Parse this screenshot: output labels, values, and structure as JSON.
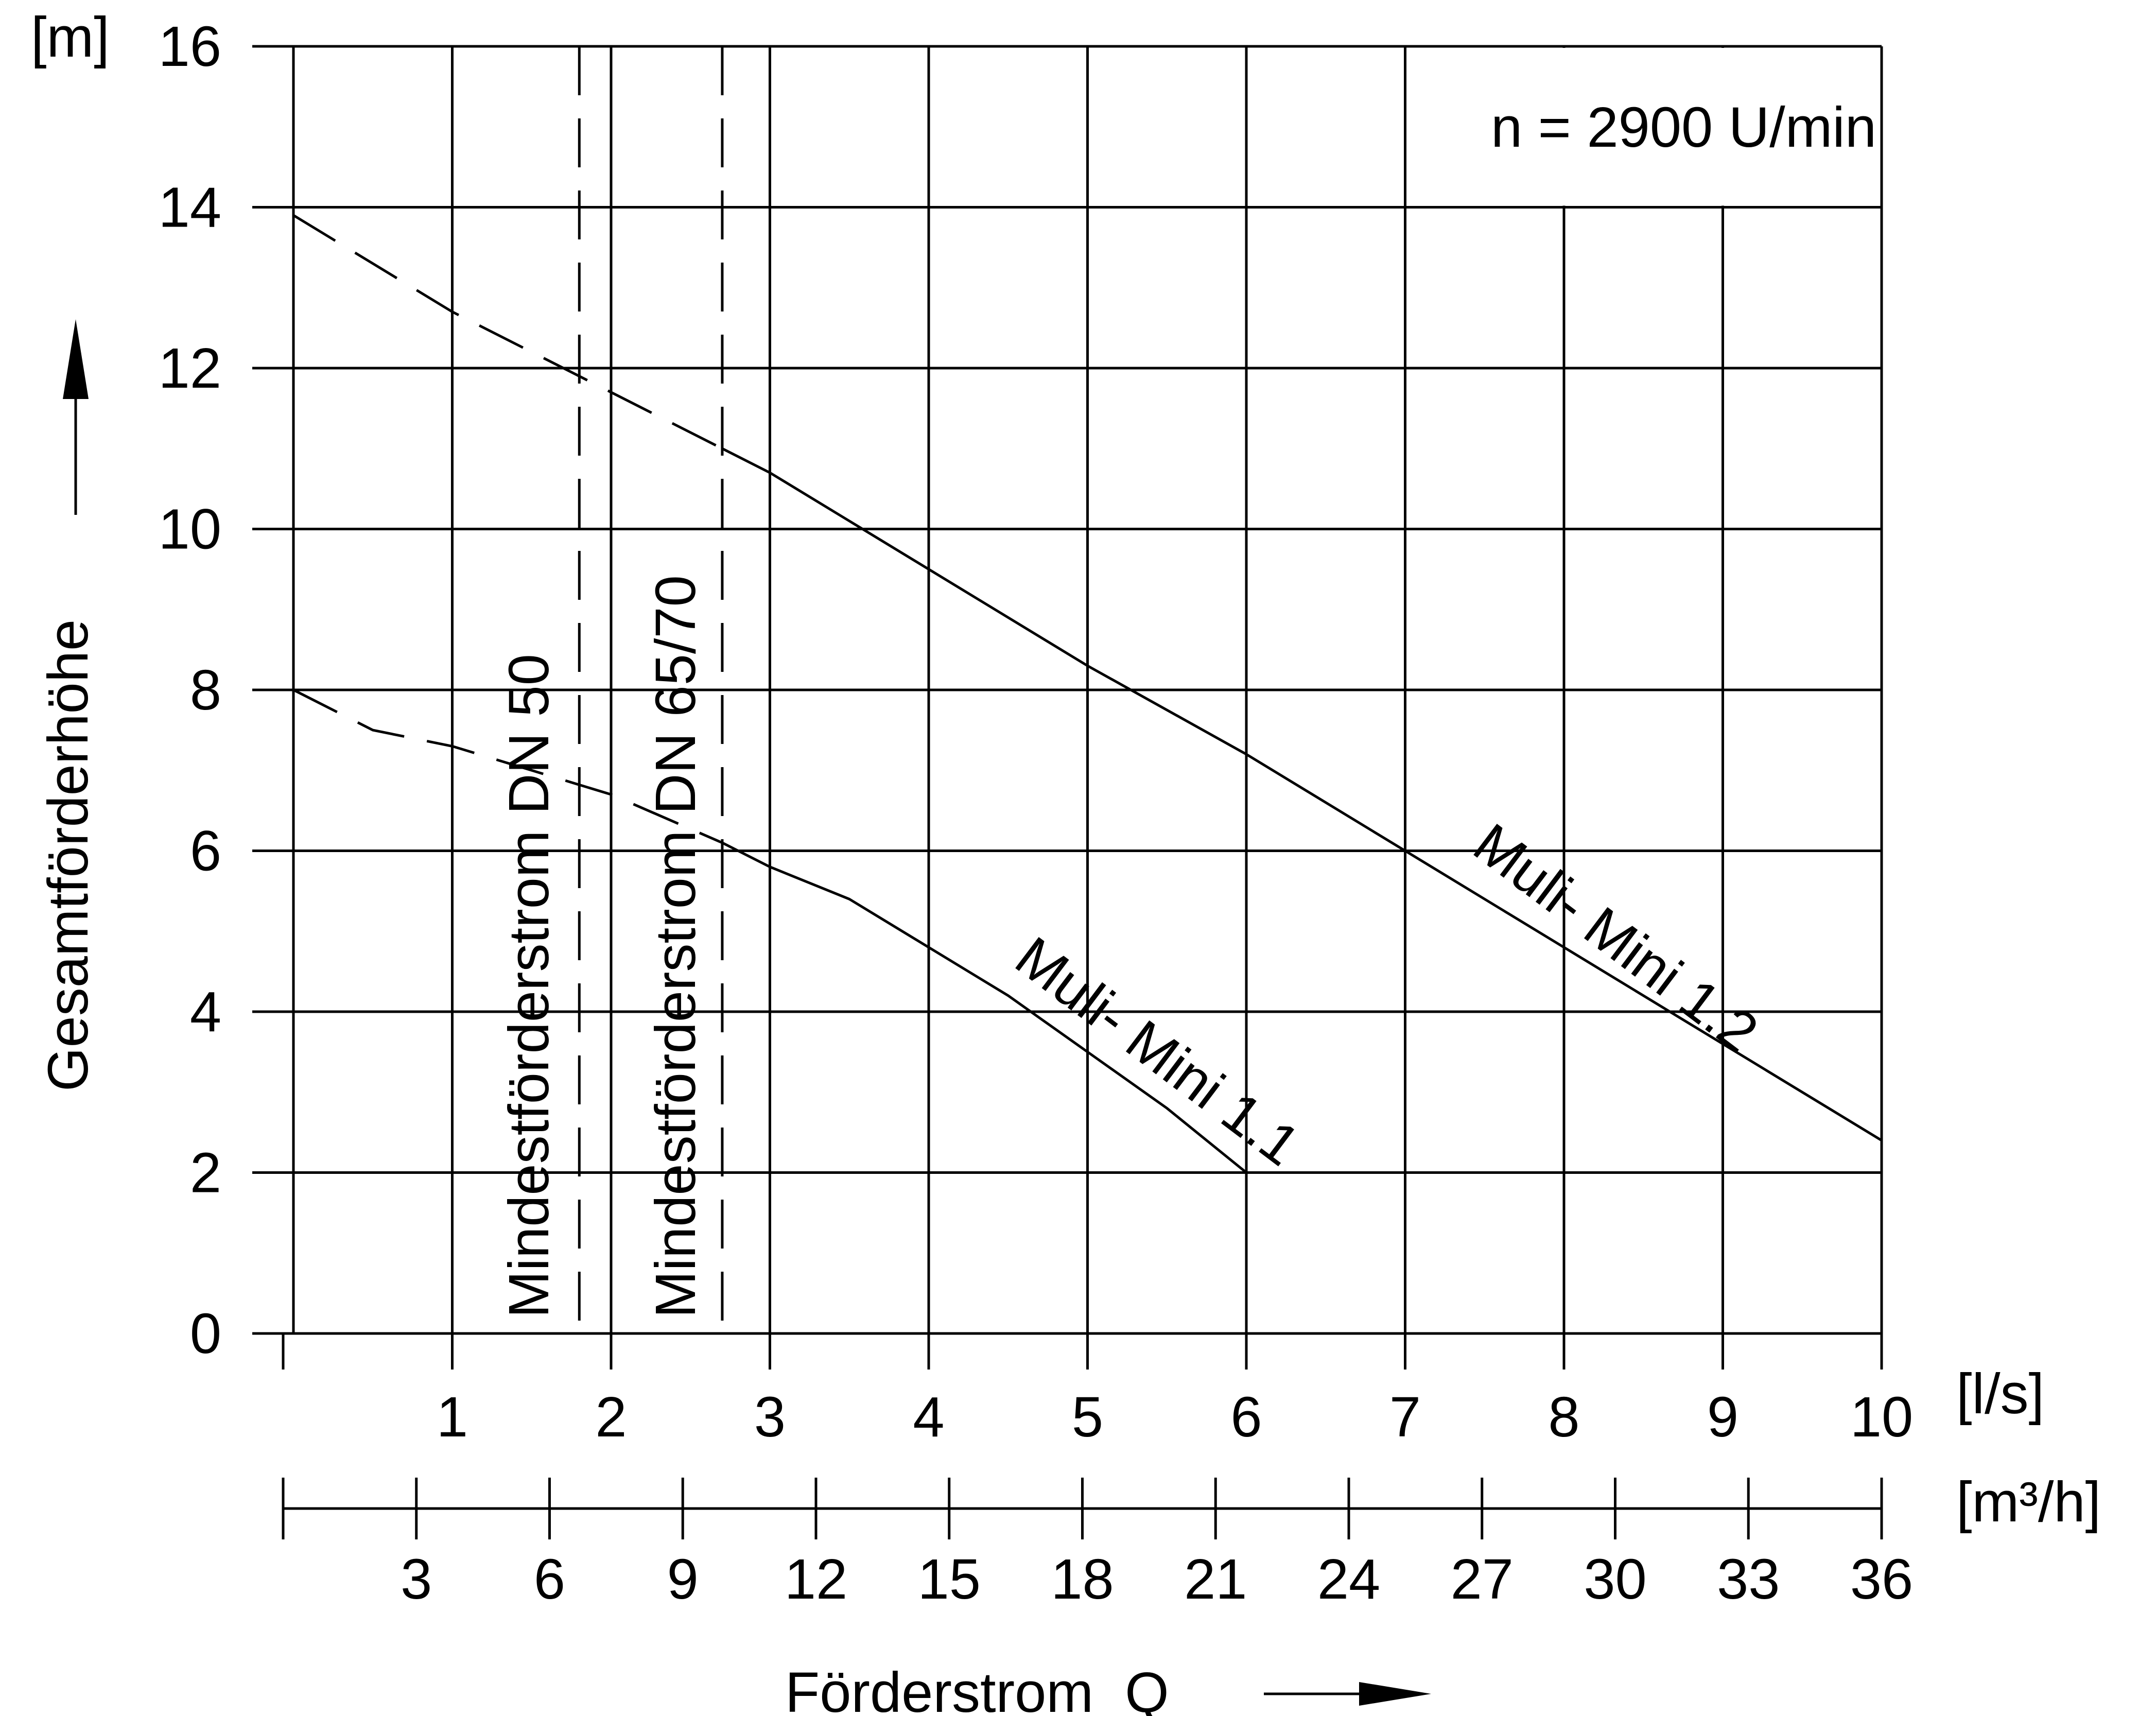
{
  "chart_data": {
    "type": "line",
    "annotation": "n = 2900 U/min",
    "xlabel": "Förderstrom  Q",
    "ylabel": "Gesamtförderhöhe",
    "x_unit": "[l/s]",
    "x2_unit": "[m³/h]",
    "y_unit": "[m]",
    "xlim": [
      0,
      10
    ],
    "ylim": [
      0,
      16
    ],
    "x_ticks": [
      "1",
      "2",
      "3",
      "4",
      "5",
      "6",
      "7",
      "8",
      "9",
      "10"
    ],
    "x2_ticks": [
      "3",
      "6",
      "9",
      "12",
      "15",
      "18",
      "21",
      "24",
      "27",
      "30",
      "33",
      "36"
    ],
    "y_ticks": [
      "0",
      "2",
      "4",
      "6",
      "8",
      "10",
      "12",
      "14",
      "16"
    ],
    "grid": true,
    "series": [
      {
        "name": "Muli- Mini 1.1",
        "dashed_part": [
          [
            0,
            8.0
          ],
          [
            0.5,
            7.5
          ],
          [
            1.0,
            7.3
          ],
          [
            1.5,
            7.0
          ],
          [
            2.0,
            6.7
          ],
          [
            2.7,
            6.1
          ]
        ],
        "solid_part": [
          [
            2.7,
            6.1
          ],
          [
            3.0,
            5.8
          ],
          [
            3.5,
            5.4
          ],
          [
            4.0,
            4.8
          ],
          [
            4.5,
            4.2
          ],
          [
            5.0,
            3.5
          ],
          [
            5.5,
            2.8
          ],
          [
            6.0,
            2.0
          ]
        ]
      },
      {
        "name": "Muli- Mini 1.2",
        "dashed_part": [
          [
            0,
            13.9
          ],
          [
            0.5,
            13.3
          ],
          [
            1.0,
            12.7
          ],
          [
            1.5,
            12.2
          ],
          [
            2.0,
            11.7
          ],
          [
            2.7,
            11.0
          ]
        ],
        "solid_part": [
          [
            2.7,
            11.0
          ],
          [
            3.0,
            10.7
          ],
          [
            4.0,
            9.5
          ],
          [
            5.0,
            8.3
          ],
          [
            6.0,
            7.2
          ],
          [
            7.0,
            6.0
          ],
          [
            8.0,
            4.8
          ],
          [
            9.0,
            3.6
          ],
          [
            10.0,
            2.4
          ]
        ]
      }
    ],
    "reference_lines": [
      {
        "label": "Mindestförderstrom DN 50",
        "x": 1.8
      },
      {
        "label": "Mindestförderstrom DN 65/70",
        "x": 2.7
      }
    ]
  }
}
